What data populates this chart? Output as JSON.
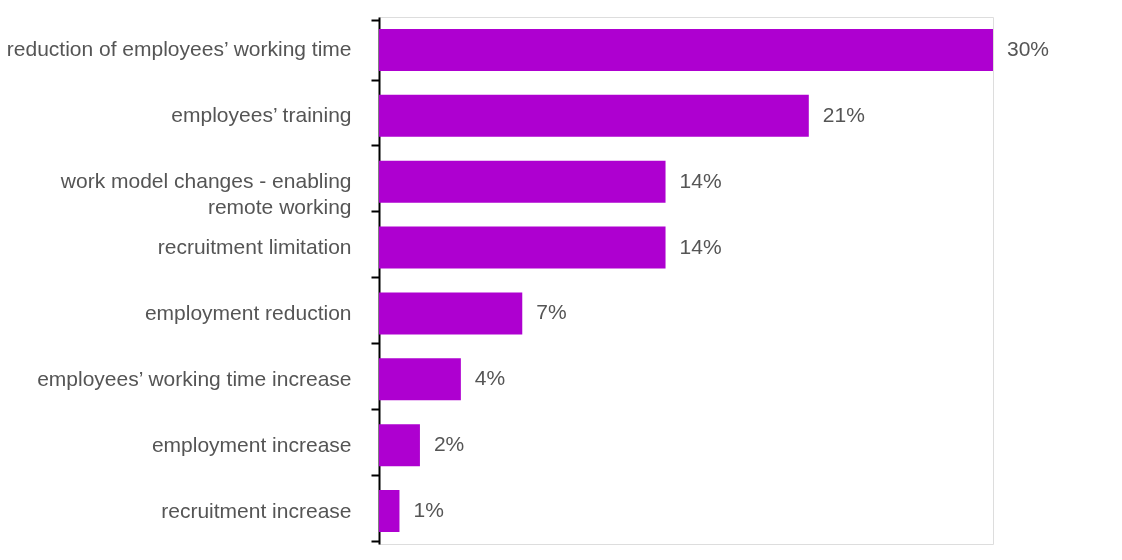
{
  "chart_data": {
    "type": "bar",
    "orientation": "horizontal",
    "categories": [
      "reduction of employees’ working time",
      "employees’ training",
      "work model changes - enabling\nremote working",
      "recruitment limitation",
      "employment reduction",
      "employees’ working time increase",
      "employment increase",
      "recruitment increase"
    ],
    "values": [
      30,
      21,
      14,
      14,
      7,
      4,
      2,
      1
    ],
    "value_labels": [
      "30%",
      "21%",
      "14%",
      "14%",
      "7%",
      "4%",
      "2%",
      "1%"
    ],
    "color": "#ae00d0"
  }
}
